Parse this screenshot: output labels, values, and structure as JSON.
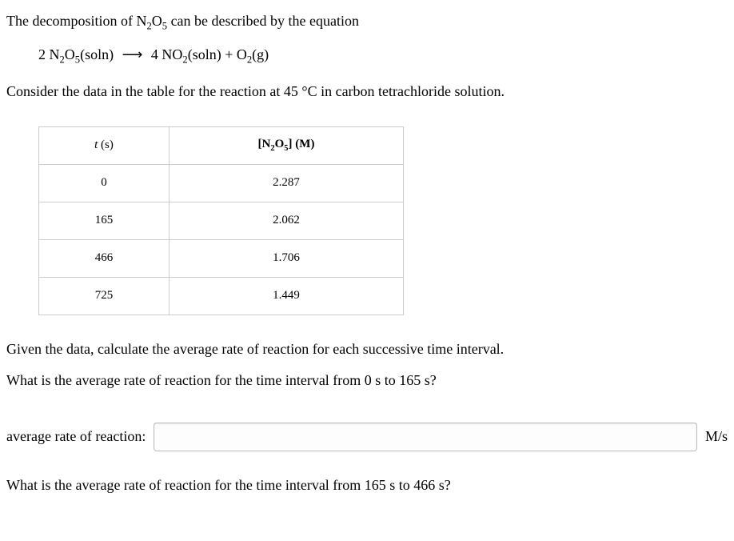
{
  "intro": {
    "line1_prefix": "The decomposition of ",
    "line1_species": "N₂O₅",
    "line1_suffix": " can be described by the equation"
  },
  "equation": {
    "lhs_coef": "2",
    "lhs_species_core": "N",
    "lhs_sub1": "2",
    "lhs_species_mid": "O",
    "lhs_sub2": "5",
    "lhs_phase": "(soln)",
    "arrow": "⟶",
    "rhs1_coef": "4",
    "rhs1_species_core": "NO",
    "rhs1_sub": "2",
    "rhs1_phase": "(soln)",
    "plus": " + ",
    "rhs2_species_core": "O",
    "rhs2_sub": "2",
    "rhs2_phase": "(g)"
  },
  "intro2": "Consider the data in the table for the reaction at 45 °C in carbon tetrachloride solution.",
  "table": {
    "header": {
      "c1_it": "t",
      "c1_rest": " (s)",
      "c2_pre": "[N",
      "c2_sub1": "2",
      "c2_mid": "O",
      "c2_sub2": "5",
      "c2_post": "] (M)"
    },
    "rows": [
      {
        "t": "0",
        "c": "2.287"
      },
      {
        "t": "165",
        "c": "2.062"
      },
      {
        "t": "466",
        "c": "1.706"
      },
      {
        "t": "725",
        "c": "1.449"
      }
    ]
  },
  "q_intro": "Given the data, calculate the average rate of reaction for each successive time interval.",
  "q1": "What is the average rate of reaction for the time interval from 0 s to 165 s?",
  "answer_label": "average rate of reaction:",
  "answer_unit": "M/s",
  "q2": "What is the average rate of reaction for the time interval from 165 s to 466 s?"
}
